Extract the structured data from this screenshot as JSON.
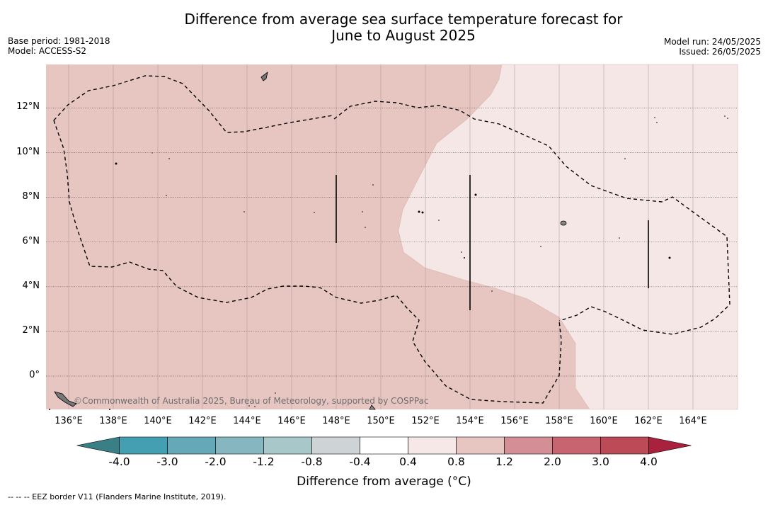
{
  "title_line1": "Difference from average sea surface temperature forecast for",
  "title_line2": "June to August 2025",
  "meta_left": {
    "base_period": "Base period: 1981-2018",
    "model": "Model: ACCESS-S2"
  },
  "meta_right": {
    "model_run": "Model run: 24/05/2025",
    "issued": "Issued: 26/05/2025"
  },
  "map": {
    "lon_range": [
      135,
      166
    ],
    "lat_range": [
      -1.5,
      14
    ],
    "lat_ticks": [
      {
        "value": 12,
        "label": "12°N"
      },
      {
        "value": 10,
        "label": "10°N"
      },
      {
        "value": 8,
        "label": "8°N"
      },
      {
        "value": 6,
        "label": "6°N"
      },
      {
        "value": 4,
        "label": "4°N"
      },
      {
        "value": 2,
        "label": "2°N"
      },
      {
        "value": 0,
        "label": "0°"
      }
    ],
    "lon_ticks": [
      {
        "value": 136,
        "label": "136°E"
      },
      {
        "value": 138,
        "label": "138°E"
      },
      {
        "value": 140,
        "label": "140°E"
      },
      {
        "value": 142,
        "label": "142°E"
      },
      {
        "value": 144,
        "label": "144°E"
      },
      {
        "value": 146,
        "label": "146°E"
      },
      {
        "value": 148,
        "label": "148°E"
      },
      {
        "value": 150,
        "label": "150°E"
      },
      {
        "value": 152,
        "label": "152°E"
      },
      {
        "value": 154,
        "label": "154°E"
      },
      {
        "value": 156,
        "label": "156°E"
      },
      {
        "value": 158,
        "label": "158°E"
      },
      {
        "value": 160,
        "label": "160°E"
      },
      {
        "value": 162,
        "label": "162°E"
      },
      {
        "value": 164,
        "label": "164°E"
      }
    ],
    "watermark": "©Commonwealth of Australia 2025, Bureau of Meteorology, supported by COSPPac",
    "warm_fill_color": "#e7c6c2",
    "mild_fill_color": "#f5e7e6"
  },
  "colorbar": {
    "title": "Difference from average (°C)",
    "labels": [
      "-4.0",
      "-3.0",
      "-2.0",
      "-1.2",
      "-0.8",
      "-0.4",
      "0.4",
      "0.8",
      "1.2",
      "2.0",
      "3.0",
      "4.0"
    ],
    "colors": [
      "#459fb2",
      "#65a9b9",
      "#86b7c1",
      "#a7c7c9",
      "#ced4d6",
      "#ffffff",
      "#f6e8e7",
      "#e7c6c2",
      "#d38f95",
      "#c8646f",
      "#bd4a57"
    ],
    "under_color": "#3b7f86",
    "over_color": "#a9213d"
  },
  "footnote": "--  --  -- EEZ border V11 (Flanders Marine Institute, 2019)."
}
